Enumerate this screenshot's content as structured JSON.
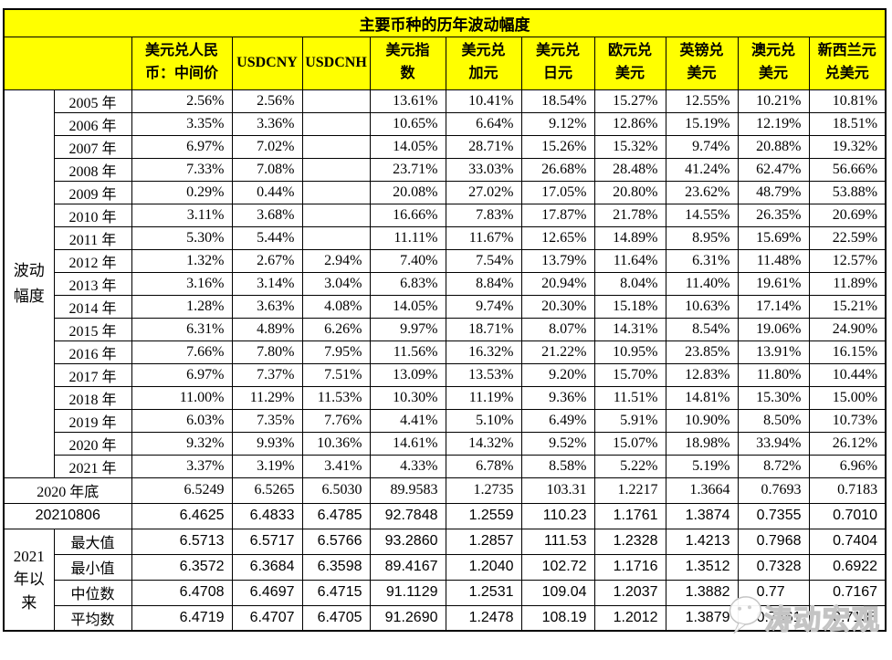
{
  "title": "主要币种的历年波动幅度",
  "watermark": {
    "text": "涛动宏观"
  },
  "colors": {
    "header_bg": "#FFFF00",
    "border": "#000000",
    "text": "#000000",
    "watermark_text": "#FFFFFF",
    "watermark_outline": "#C4C4C4"
  },
  "chart_data": {
    "type": "table",
    "title": "主要币种的历年波动幅度",
    "row_group_label": "波动幅度",
    "columns": [
      "美元兑人民\n币：中间价",
      "USDCNY",
      "USDCNH",
      "美元指\n数",
      "美元兑\n加元",
      "美元兑\n日元",
      "欧元兑\n美元",
      "英镑兑\n美元",
      "澳元兑\n美元",
      "新西兰元\n兑美元"
    ],
    "yearly_rows": [
      {
        "label": "2005 年",
        "values": [
          "2.56%",
          "2.56%",
          "",
          "13.61%",
          "10.41%",
          "18.54%",
          "15.27%",
          "12.55%",
          "10.21%",
          "10.81%"
        ]
      },
      {
        "label": "2006 年",
        "values": [
          "3.35%",
          "3.36%",
          "",
          "10.65%",
          "6.64%",
          "9.12%",
          "12.86%",
          "15.19%",
          "12.19%",
          "18.51%"
        ]
      },
      {
        "label": "2007 年",
        "values": [
          "6.97%",
          "7.02%",
          "",
          "14.05%",
          "28.71%",
          "15.26%",
          "15.32%",
          "9.74%",
          "20.88%",
          "19.32%"
        ]
      },
      {
        "label": "2008 年",
        "values": [
          "7.33%",
          "7.08%",
          "",
          "23.71%",
          "33.03%",
          "26.68%",
          "28.48%",
          "41.24%",
          "62.47%",
          "56.66%"
        ]
      },
      {
        "label": "2009 年",
        "values": [
          "0.29%",
          "0.44%",
          "",
          "20.08%",
          "27.02%",
          "17.05%",
          "20.80%",
          "23.62%",
          "48.79%",
          "53.88%"
        ]
      },
      {
        "label": "2010 年",
        "values": [
          "3.11%",
          "3.68%",
          "",
          "16.66%",
          "7.83%",
          "17.87%",
          "21.78%",
          "14.55%",
          "26.35%",
          "20.69%"
        ]
      },
      {
        "label": "2011 年",
        "values": [
          "5.30%",
          "5.44%",
          "",
          "11.11%",
          "11.67%",
          "12.65%",
          "14.89%",
          "8.95%",
          "15.69%",
          "22.59%"
        ]
      },
      {
        "label": "2012 年",
        "values": [
          "1.32%",
          "2.67%",
          "2.94%",
          "7.40%",
          "7.54%",
          "13.79%",
          "11.64%",
          "6.31%",
          "11.48%",
          "12.57%"
        ]
      },
      {
        "label": "2013 年",
        "values": [
          "3.16%",
          "3.14%",
          "3.04%",
          "6.83%",
          "8.84%",
          "20.94%",
          "8.04%",
          "11.40%",
          "19.61%",
          "11.89%"
        ]
      },
      {
        "label": "2014 年",
        "values": [
          "1.28%",
          "3.63%",
          "4.08%",
          "14.05%",
          "9.74%",
          "20.30%",
          "15.18%",
          "10.63%",
          "17.14%",
          "15.21%"
        ]
      },
      {
        "label": "2015 年",
        "values": [
          "6.31%",
          "4.89%",
          "6.26%",
          "9.97%",
          "18.71%",
          "8.07%",
          "14.31%",
          "8.54%",
          "19.06%",
          "24.90%"
        ]
      },
      {
        "label": "2016 年",
        "values": [
          "7.66%",
          "7.80%",
          "7.95%",
          "11.56%",
          "16.32%",
          "21.22%",
          "10.95%",
          "23.85%",
          "13.91%",
          "16.15%"
        ]
      },
      {
        "label": "2017 年",
        "values": [
          "6.97%",
          "7.37%",
          "7.51%",
          "13.09%",
          "13.53%",
          "9.20%",
          "15.70%",
          "12.83%",
          "11.80%",
          "10.44%"
        ]
      },
      {
        "label": "2018 年",
        "values": [
          "11.00%",
          "11.29%",
          "11.53%",
          "10.30%",
          "11.19%",
          "9.36%",
          "11.51%",
          "14.81%",
          "15.30%",
          "15.00%"
        ]
      },
      {
        "label": "2019 年",
        "values": [
          "6.03%",
          "7.35%",
          "7.76%",
          "4.41%",
          "5.10%",
          "6.49%",
          "5.91%",
          "10.90%",
          "8.50%",
          "10.73%"
        ]
      },
      {
        "label": "2020 年",
        "values": [
          "9.32%",
          "9.93%",
          "10.36%",
          "14.61%",
          "14.32%",
          "9.52%",
          "15.07%",
          "18.98%",
          "33.94%",
          "26.12%"
        ]
      },
      {
        "label": "2021 年",
        "values": [
          "3.37%",
          "3.19%",
          "3.41%",
          "4.33%",
          "6.78%",
          "8.58%",
          "5.22%",
          "5.19%",
          "8.72%",
          "6.96%"
        ]
      }
    ],
    "snapshot_rows": [
      {
        "label": "2020 年底",
        "font": "serif",
        "values": [
          "6.5249",
          "6.5265",
          "6.5030",
          "89.9583",
          "1.2735",
          "103.31",
          "1.2217",
          "1.3664",
          "0.7693",
          "0.7183"
        ]
      },
      {
        "label": "20210806",
        "font": "sans",
        "values": [
          "6.4625",
          "6.4833",
          "6.4785",
          "92.7848",
          "1.2559",
          "110.23",
          "1.1761",
          "1.3874",
          "0.7355",
          "0.7010"
        ]
      }
    ],
    "stats_group": {
      "label": "2021 年以来",
      "rows": [
        {
          "label": "最大值",
          "values": [
            "6.5713",
            "6.5717",
            "6.5766",
            "93.2860",
            "1.2857",
            "111.53",
            "1.2328",
            "1.4213",
            "0.7968",
            "0.7404"
          ]
        },
        {
          "label": "最小值",
          "values": [
            "6.3572",
            "6.3684",
            "6.3598",
            "89.4167",
            "1.2040",
            "102.72",
            "1.1716",
            "1.3512",
            "0.7328",
            "0.6922"
          ]
        },
        {
          "label": "中位数",
          "values": [
            "6.4708",
            "6.4697",
            "6.4715",
            "91.1129",
            "1.2531",
            "109.04",
            "1.2037",
            "1.3882",
            "0.77  ",
            "0.7167"
          ]
        },
        {
          "label": "平均数",
          "values": [
            "6.4719",
            "6.4707",
            "6.4705",
            "91.2690",
            "1.2478",
            "108.19",
            "1.2012",
            "1.3879",
            "0.7661",
            "0.7138"
          ]
        }
      ]
    }
  }
}
